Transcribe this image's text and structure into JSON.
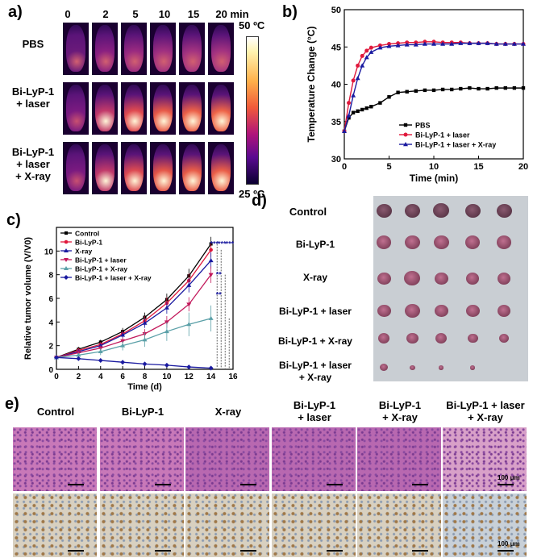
{
  "panel_a": {
    "label": "a)",
    "times": [
      "0",
      "2",
      "5",
      "10",
      "15",
      "20 min"
    ],
    "rows": [
      "PBS",
      "Bi-LyP-1\n+ laser",
      "Bi-LyP-1\n+ laser\n+ X-ray"
    ],
    "colorbar_max": "50 ºC",
    "colorbar_min": "25 ºC"
  },
  "panel_b": {
    "label": "b)"
  },
  "panel_c": {
    "label": "c)"
  },
  "panel_d": {
    "label": "d)",
    "rows": [
      "Control",
      "Bi-LyP-1",
      "X-ray",
      "Bi-LyP-1 + laser",
      "Bi-LyP-1 + X-ray",
      "Bi-LyP-1 + laser\n+ X-ray"
    ]
  },
  "panel_e": {
    "label": "e)",
    "columns": [
      "Control",
      "Bi-LyP-1",
      "X-ray",
      "Bi-LyP-1\n+ laser",
      "Bi-LyP-1\n+ X-ray",
      "Bi-LyP-1 + laser\n+ X-ray"
    ],
    "scale_label": "100 μm"
  },
  "chart_data": [
    {
      "panel": "b",
      "type": "line",
      "ylabel": "Temperature Change (°C)",
      "xlabel": "Time (min)",
      "xlim": [
        0,
        20
      ],
      "ylim": [
        30,
        50
      ],
      "xticks": [
        0,
        5,
        10,
        15,
        20
      ],
      "yticks": [
        30,
        35,
        40,
        45,
        50
      ],
      "legend_position": "bottom-right",
      "x": [
        0,
        0.5,
        1,
        1.5,
        2,
        2.5,
        3,
        4,
        5,
        6,
        7,
        8,
        9,
        10,
        11,
        12,
        13,
        14,
        15,
        16,
        17,
        18,
        19,
        20
      ],
      "series": [
        {
          "name": "PBS",
          "color": "#000000",
          "marker": "square",
          "values": [
            33.7,
            35.5,
            36.2,
            36.4,
            36.6,
            36.8,
            37.0,
            37.5,
            38.3,
            38.9,
            39.0,
            39.1,
            39.2,
            39.2,
            39.3,
            39.3,
            39.4,
            39.5,
            39.4,
            39.4,
            39.5,
            39.5,
            39.5,
            39.5
          ]
        },
        {
          "name": "Bi-LyP-1 + laser",
          "color": "#e0183c",
          "marker": "circle",
          "values": [
            33.7,
            37.5,
            40.5,
            42.5,
            43.8,
            44.5,
            44.9,
            45.2,
            45.4,
            45.5,
            45.6,
            45.6,
            45.7,
            45.7,
            45.6,
            45.6,
            45.6,
            45.5,
            45.5,
            45.5,
            45.4,
            45.4,
            45.4,
            45.4
          ]
        },
        {
          "name": "Bi-LyP-1 + laser + X-ray",
          "color": "#1a1aa0",
          "marker": "triangle",
          "values": [
            33.7,
            35.8,
            38.5,
            40.8,
            42.5,
            43.6,
            44.3,
            44.9,
            45.1,
            45.2,
            45.3,
            45.3,
            45.4,
            45.4,
            45.4,
            45.4,
            45.5,
            45.5,
            45.5,
            45.5,
            45.4,
            45.4,
            45.4,
            45.4
          ]
        }
      ]
    },
    {
      "panel": "c",
      "type": "line",
      "ylabel": "Relative tumor volume (V/V0)",
      "xlabel": "Time (d)",
      "xlim": [
        0,
        16
      ],
      "ylim": [
        0,
        12
      ],
      "xticks": [
        0,
        2,
        4,
        6,
        8,
        10,
        12,
        14,
        16
      ],
      "yticks": [
        0,
        2,
        4,
        6,
        8,
        10
      ],
      "legend_position": "top-left",
      "x": [
        0,
        2,
        4,
        6,
        8,
        10,
        12,
        14
      ],
      "series": [
        {
          "name": "Control",
          "color": "#000000",
          "marker": "square",
          "values": [
            1.0,
            1.7,
            2.3,
            3.2,
            4.4,
            5.9,
            7.9,
            10.6
          ],
          "errors": [
            0.1,
            0.2,
            0.2,
            0.3,
            0.4,
            0.5,
            0.6,
            0.6
          ]
        },
        {
          "name": "Bi-LyP-1",
          "color": "#e0183c",
          "marker": "circle",
          "values": [
            1.0,
            1.6,
            2.1,
            3.0,
            4.1,
            5.6,
            7.5,
            10.1
          ],
          "errors": [
            0.1,
            0.2,
            0.2,
            0.3,
            0.4,
            0.5,
            0.6,
            0.6
          ]
        },
        {
          "name": "X-ray",
          "color": "#1a1aa0",
          "marker": "triangle",
          "values": [
            1.0,
            1.5,
            2.0,
            2.9,
            3.9,
            5.2,
            7.1,
            9.2
          ],
          "errors": [
            0.1,
            0.2,
            0.2,
            0.3,
            0.4,
            0.5,
            0.6,
            0.7
          ]
        },
        {
          "name": "Bi-LyP-1 + laser",
          "color": "#c2185b",
          "marker": "triangle-down",
          "values": [
            1.0,
            1.4,
            1.8,
            2.4,
            3.0,
            4.0,
            5.5,
            8.0
          ],
          "errors": [
            0.1,
            0.2,
            0.2,
            0.3,
            0.4,
            0.5,
            0.6,
            0.7
          ]
        },
        {
          "name": "Bi-LyP-1 + X-ray",
          "color": "#5ba0a8",
          "marker": "triangle",
          "values": [
            1.0,
            1.2,
            1.5,
            2.0,
            2.5,
            3.2,
            3.8,
            4.3
          ],
          "errors": [
            0.1,
            0.2,
            0.3,
            0.4,
            0.6,
            0.8,
            1.0,
            1.1
          ]
        },
        {
          "name": "Bi-LyP-1 + laser + X-ray",
          "color": "#1a1aa0",
          "marker": "diamond",
          "values": [
            1.0,
            0.9,
            0.75,
            0.6,
            0.45,
            0.35,
            0.2,
            0.1
          ],
          "errors": [
            0.05,
            0.1,
            0.1,
            0.1,
            0.1,
            0.05,
            0.05,
            0.05
          ]
        }
      ],
      "annotations": [
        "***",
        "***",
        "***",
        "**",
        "**"
      ]
    }
  ]
}
